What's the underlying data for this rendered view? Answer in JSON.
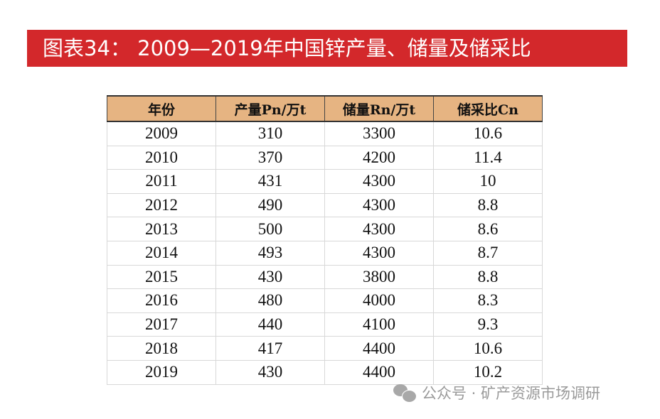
{
  "title": "图表34： 2009—2019年中国锌产量、储量及储采比",
  "table": {
    "headers": [
      "年份",
      "产量Pn/万t",
      "储量Rn/万t",
      "储采比Cn"
    ],
    "rows": [
      [
        "2009",
        "310",
        "3300",
        "10.6"
      ],
      [
        "2010",
        "370",
        "4200",
        "11.4"
      ],
      [
        "2011",
        "431",
        "4300",
        "10"
      ],
      [
        "2012",
        "490",
        "4300",
        "8.8"
      ],
      [
        "2013",
        "500",
        "4300",
        "8.6"
      ],
      [
        "2014",
        "493",
        "4300",
        "8.7"
      ],
      [
        "2015",
        "430",
        "3800",
        "8.8"
      ],
      [
        "2016",
        "480",
        "4000",
        "8.3"
      ],
      [
        "2017",
        "440",
        "4100",
        "9.3"
      ],
      [
        "2018",
        "417",
        "4400",
        "10.6"
      ],
      [
        "2019",
        "430",
        "4400",
        "10.2"
      ]
    ]
  },
  "watermark": "公众号 · 矿产资源市场调研"
}
